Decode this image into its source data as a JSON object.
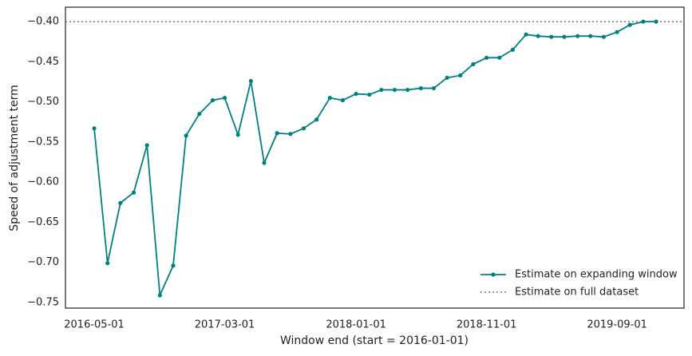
{
  "chart_data": {
    "type": "line",
    "xlabel": "Window end (start = 2016-01-01)",
    "ylabel": "Speed of adjustment term",
    "x": [
      "2016-05-01",
      "2016-06-01",
      "2016-07-01",
      "2016-08-01",
      "2016-09-01",
      "2016-10-01",
      "2016-11-01",
      "2016-12-01",
      "2017-01-01",
      "2017-02-01",
      "2017-03-01",
      "2017-04-01",
      "2017-05-01",
      "2017-06-01",
      "2017-07-01",
      "2017-08-01",
      "2017-09-01",
      "2017-10-01",
      "2017-11-01",
      "2017-12-01",
      "2018-01-01",
      "2018-02-01",
      "2018-03-01",
      "2018-04-01",
      "2018-05-01",
      "2018-06-01",
      "2018-07-01",
      "2018-08-01",
      "2018-09-01",
      "2018-10-01",
      "2018-11-01",
      "2018-12-01",
      "2019-01-01",
      "2019-02-01",
      "2019-03-01",
      "2019-04-01",
      "2019-05-01",
      "2019-06-01",
      "2019-07-01",
      "2019-08-01",
      "2019-09-01",
      "2019-10-01",
      "2019-11-01",
      "2019-12-01"
    ],
    "series": [
      {
        "name": "Estimate on expanding window",
        "color": "#008080",
        "values": [
          -0.533,
          -0.701,
          -0.626,
          -0.613,
          -0.554,
          -0.741,
          -0.704,
          -0.542,
          -0.515,
          -0.498,
          -0.495,
          -0.541,
          -0.474,
          -0.576,
          -0.539,
          -0.54,
          -0.533,
          -0.522,
          -0.495,
          -0.498,
          -0.49,
          -0.491,
          -0.485,
          -0.485,
          -0.485,
          -0.483,
          -0.483,
          -0.47,
          -0.467,
          -0.453,
          -0.445,
          -0.445,
          -0.435,
          -0.416,
          -0.418,
          -0.419,
          -0.419,
          -0.418,
          -0.418,
          -0.419,
          -0.413,
          -0.404,
          -0.4,
          -0.4
        ]
      }
    ],
    "reference": {
      "name": "Estimate on full dataset",
      "value": -0.4,
      "color": "#777777"
    },
    "xlim": [
      "2016-02-24",
      "2020-02-04"
    ],
    "xticks": [
      "2016-05-01",
      "2017-03-01",
      "2018-01-01",
      "2018-11-01",
      "2019-09-01"
    ],
    "ylim": [
      -0.757,
      -0.382
    ],
    "yticks": [
      {
        "value": -0.75,
        "label": "−0.75"
      },
      {
        "value": -0.7,
        "label": "−0.70"
      },
      {
        "value": -0.65,
        "label": "−0.65"
      },
      {
        "value": -0.6,
        "label": "−0.60"
      },
      {
        "value": -0.55,
        "label": "−0.55"
      },
      {
        "value": -0.5,
        "label": "−0.50"
      },
      {
        "value": -0.45,
        "label": "−0.45"
      },
      {
        "value": -0.4,
        "label": "−0.40"
      }
    ],
    "legend": "lower right"
  }
}
